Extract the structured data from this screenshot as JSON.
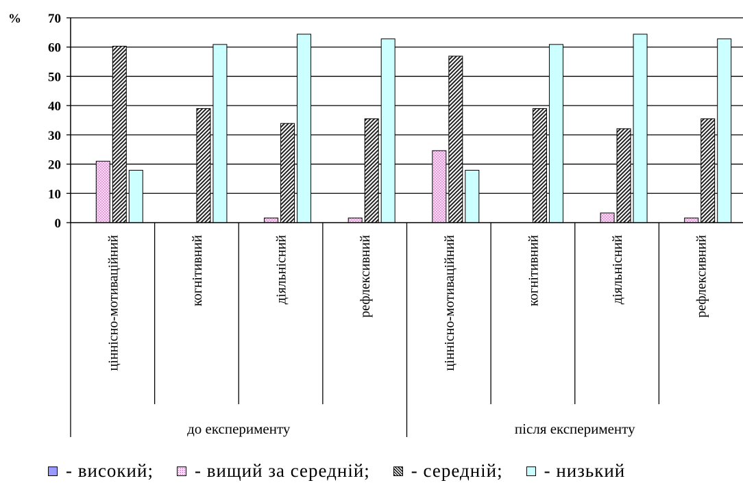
{
  "chart_data": {
    "type": "bar",
    "unit_label": "%",
    "ylim": [
      0,
      70
    ],
    "yticks": [
      "0",
      "10",
      "20",
      "30",
      "40",
      "50",
      "60",
      "70"
    ],
    "grid": true,
    "legend_position": "bottom",
    "groups": [
      {
        "label": "до експерименту",
        "categories": [
          "ціннісно-мотиваційний",
          "когнітивний",
          "діяльнісний",
          "рефлексивний"
        ]
      },
      {
        "label": "після експерименту",
        "categories": [
          "ціннісно-мотиваційний",
          "когнітивний",
          "діяльнісний",
          "рефлексивний"
        ]
      }
    ],
    "categories": [
      "ціннісно-мотиваційний",
      "когнітивний",
      "діяльнісний",
      "рефлексивний",
      "ціннісно-мотиваційний",
      "когнітивний",
      "діяльнісний",
      "рефлексивний"
    ],
    "series": [
      {
        "name": "високий",
        "pattern": "solid",
        "color": "#9999ff",
        "values": [
          0,
          0,
          0,
          0,
          0,
          0,
          0,
          0
        ]
      },
      {
        "name": "вищий за середній",
        "pattern": "dots",
        "color": "#ffccff",
        "values": [
          21,
          0,
          1.6,
          1.6,
          24.6,
          0,
          3.3,
          1.6
        ]
      },
      {
        "name": "середній",
        "pattern": "diagonal",
        "color": "#333333",
        "values": [
          60.3,
          39,
          33.9,
          35.5,
          56.9,
          39,
          32.1,
          35.5
        ]
      },
      {
        "name": "низький",
        "pattern": "solid",
        "color": "#ccffff",
        "values": [
          17.9,
          60.9,
          64.4,
          62.8,
          17.9,
          60.9,
          64.4,
          62.8
        ]
      }
    ]
  },
  "legend": {
    "items": [
      {
        "label": "- високий;",
        "color": "#9999ff",
        "pattern": "solid"
      },
      {
        "label": "- вищий за середній;",
        "color": "#ffccff",
        "pattern": "dots"
      },
      {
        "label": "- середній;",
        "color": "#333333",
        "pattern": "diagonal"
      },
      {
        "label": "- низький",
        "color": "#ccffff",
        "pattern": "solid"
      }
    ]
  }
}
